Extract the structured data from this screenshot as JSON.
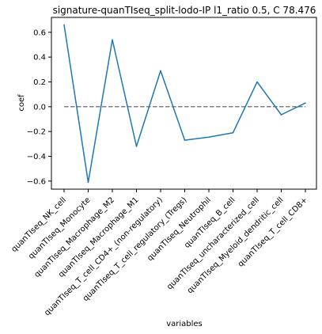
{
  "chart_data": {
    "type": "line",
    "title": "signature-quanTIseq_split-lodo-IP l1_ratio 0.5, C 78.476",
    "xlabel": "variables",
    "ylabel": "coef",
    "categories": [
      "quanTIseq_NK_cell",
      "quanTIseq_Monocyte",
      "quanTIseq_Macrophage_M2",
      "quanTIseq_Macrophage_M1",
      "quanTIseq_T_cell_CD4+_(non-regulatory)",
      "quanTIseq_T_cell_regulatory_(Tregs)",
      "quanTIseq_Neutrophil",
      "quanTIseq_B_cell",
      "quanTIseq_uncharacterized_cell",
      "quanTIseq_Myeloid_dendritic_cell",
      "quanTIseq_T_cell_CD8+"
    ],
    "series": [
      {
        "values": [
          0.66,
          -0.61,
          0.54,
          -0.32,
          0.29,
          -0.27,
          -0.245,
          -0.21,
          0.2,
          -0.065,
          0.03
        ],
        "color": "#1f77b4"
      }
    ],
    "reference_line": {
      "y": 0,
      "style": "dashed",
      "color": "#808080"
    },
    "ylim": [
      -0.665,
      0.72
    ],
    "yticks": [
      -0.6,
      -0.4,
      -0.2,
      0.0,
      0.2,
      0.4,
      0.6
    ],
    "ytick_labels": [
      "−0.6",
      "−0.4",
      "−0.2",
      "0.0",
      "0.2",
      "0.4",
      "0.6"
    ],
    "grid": false,
    "legend": false
  }
}
